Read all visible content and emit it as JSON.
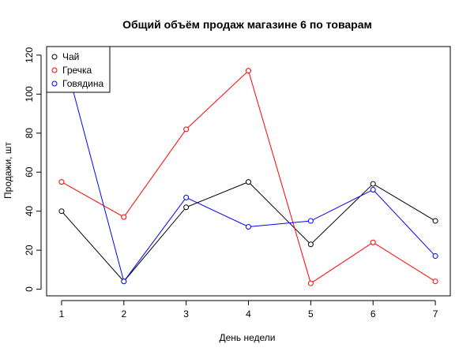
{
  "chart_data": {
    "type": "line",
    "title": "Общий объём продаж магазине 6 по товарам",
    "xlabel": "День недели",
    "ylabel": "Продажи, шт",
    "x": [
      1,
      2,
      3,
      4,
      5,
      6,
      7
    ],
    "x_ticks": [
      "1",
      "2",
      "3",
      "4",
      "5",
      "6",
      "7"
    ],
    "y_ticks": [
      "0",
      "20",
      "40",
      "60",
      "80",
      "100",
      "120"
    ],
    "xlim": [
      0.76,
      7.24
    ],
    "ylim": [
      -3.4,
      124.4
    ],
    "grid": false,
    "legend_position": "top-left",
    "series": [
      {
        "name": "Чай",
        "color": "#000000",
        "values": [
          40,
          4,
          42,
          55,
          23,
          54,
          35
        ]
      },
      {
        "name": "Гречка",
        "color": "#ff0000",
        "values": [
          55,
          37,
          82,
          112,
          3,
          24,
          4
        ]
      },
      {
        "name": "Говядина",
        "color": "#0000ff",
        "values": [
          124,
          4,
          47,
          32,
          35,
          51,
          17
        ]
      }
    ]
  }
}
